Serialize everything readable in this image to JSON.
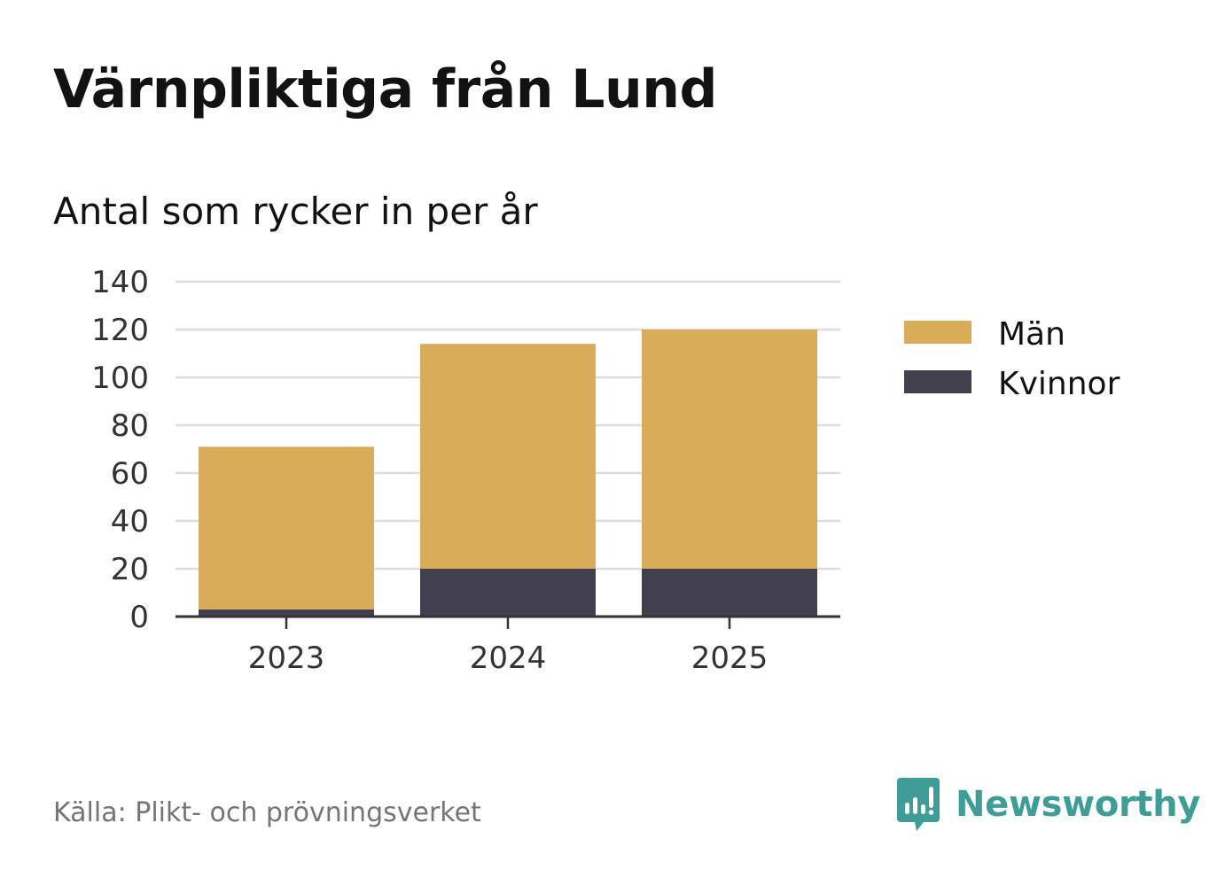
{
  "title": "Värnpliktiga från Lund",
  "subtitle": "Antal som rycker in per år",
  "source": "Källa: Plikt- och prövningsverket",
  "brand": {
    "name": "Newsworthy",
    "icon": "newsworthy-logo-icon",
    "color": "#3f9d97"
  },
  "chart_data": {
    "type": "bar",
    "stacked": true,
    "categories": [
      "2023",
      "2024",
      "2025"
    ],
    "series": [
      {
        "name": "Kvinnor",
        "color": "#42404f",
        "values": [
          3,
          20,
          20
        ]
      },
      {
        "name": "Män",
        "color": "#d9ac5a",
        "values": [
          68,
          94,
          100
        ]
      }
    ],
    "legend_order": [
      "Män",
      "Kvinnor"
    ],
    "ylim": [
      0,
      140
    ],
    "yticks": [
      0,
      20,
      40,
      60,
      80,
      100,
      120,
      140
    ],
    "xlabel": "",
    "ylabel": "",
    "grid": true,
    "legend_position": "right"
  }
}
